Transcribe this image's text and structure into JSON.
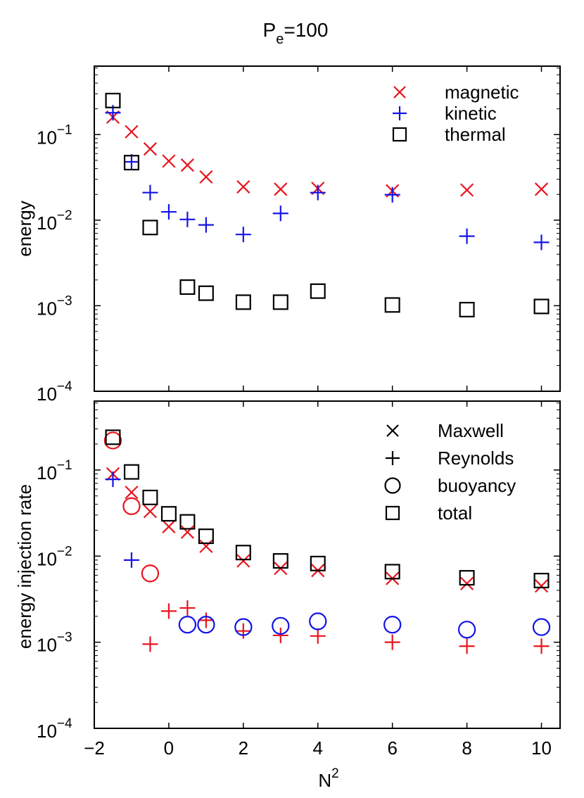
{
  "title": {
    "main": "P",
    "sub": "e",
    "rest": "=100"
  },
  "xlabel": {
    "base": "N",
    "sup": "2"
  },
  "x_ticks": [
    "−2",
    "0",
    "2",
    "4",
    "6",
    "8",
    "10"
  ],
  "colors": {
    "red": "#e8141e",
    "blue": "#1414e6",
    "black": "#000000"
  },
  "chart_data": [
    {
      "type": "scatter",
      "panel": "top",
      "ylabel": "energy",
      "xlim": [
        -2,
        10.5
      ],
      "ylim_log10": [
        -4,
        -0.2
      ],
      "y_ticks": [
        {
          "exp": -1,
          "base": "10",
          "sup": "−1"
        },
        {
          "exp": -2,
          "base": "10",
          "sup": "−2"
        },
        {
          "exp": -3,
          "base": "10",
          "sup": "−3"
        },
        {
          "exp": -4,
          "base": "10",
          "sup": "−4"
        }
      ],
      "legend_position": "top-right",
      "series": [
        {
          "name": "magnetic",
          "marker": "x",
          "color": "red",
          "points": [
            [
              -1.5,
              0.16
            ],
            [
              -1,
              0.108
            ],
            [
              -0.5,
              0.068
            ],
            [
              0,
              0.049
            ],
            [
              0.5,
              0.044
            ],
            [
              1,
              0.032
            ],
            [
              2,
              0.0245
            ],
            [
              3,
              0.023
            ],
            [
              4,
              0.0235
            ],
            [
              6,
              0.022
            ],
            [
              8,
              0.0225
            ],
            [
              10,
              0.023
            ]
          ]
        },
        {
          "name": "kinetic",
          "marker": "+",
          "color": "blue",
          "points": [
            [
              -1.5,
              0.18
            ],
            [
              -1,
              0.048
            ],
            [
              -0.5,
              0.021
            ],
            [
              0,
              0.0125
            ],
            [
              0.5,
              0.0102
            ],
            [
              1,
              0.0088
            ],
            [
              2,
              0.0068
            ],
            [
              3,
              0.012
            ],
            [
              4,
              0.021
            ],
            [
              6,
              0.0198
            ],
            [
              8,
              0.0065
            ],
            [
              10,
              0.0055
            ]
          ]
        },
        {
          "name": "thermal",
          "marker": "square",
          "color": "black",
          "points": [
            [
              -1.5,
              0.25
            ],
            [
              -1,
              0.047
            ],
            [
              -0.5,
              0.0082
            ],
            [
              0.5,
              0.00165
            ],
            [
              1,
              0.0014
            ],
            [
              2,
              0.0011
            ],
            [
              3,
              0.0011
            ],
            [
              4,
              0.00148
            ],
            [
              6,
              0.00102
            ],
            [
              8,
              0.0009
            ],
            [
              10,
              0.00098
            ]
          ]
        }
      ]
    },
    {
      "type": "scatter",
      "panel": "bottom",
      "ylabel": "energy injection rate",
      "xlim": [
        -2,
        10.5
      ],
      "ylim_log10": [
        -4,
        -0.2
      ],
      "y_ticks": [
        {
          "exp": -1,
          "base": "10",
          "sup": "−1"
        },
        {
          "exp": -2,
          "base": "10",
          "sup": "−2"
        },
        {
          "exp": -3,
          "base": "10",
          "sup": "−3"
        },
        {
          "exp": -4,
          "base": "10",
          "sup": "−4"
        }
      ],
      "legend_position": "top-right",
      "legend_color": "black",
      "series": [
        {
          "name": "Maxwell",
          "marker": "x",
          "color": "red",
          "points": [
            [
              -1.5,
              0.09
            ],
            [
              -1,
              0.055
            ],
            [
              -0.5,
              0.033
            ],
            [
              0,
              0.022
            ],
            [
              0.5,
              0.019
            ],
            [
              1,
              0.013
            ],
            [
              2,
              0.0088
            ],
            [
              3,
              0.0072
            ],
            [
              4,
              0.0068
            ],
            [
              6,
              0.0055
            ],
            [
              8,
              0.0048
            ],
            [
              10,
              0.0045
            ]
          ]
        },
        {
          "name": "Reynolds",
          "marker": "+",
          "color": "mixed",
          "points": [
            [
              -1.5,
              0.078,
              "blue"
            ],
            [
              -1,
              0.009,
              "blue"
            ],
            [
              -0.5,
              0.00095,
              "red"
            ],
            [
              0,
              0.0023,
              "red"
            ],
            [
              0.5,
              0.0025,
              "red"
            ],
            [
              1,
              0.0018,
              "red"
            ],
            [
              2,
              0.00135,
              "red"
            ],
            [
              3,
              0.0012,
              "red"
            ],
            [
              4,
              0.00118,
              "red"
            ],
            [
              6,
              0.001,
              "red"
            ],
            [
              8,
              0.0009,
              "red"
            ],
            [
              10,
              0.0009,
              "red"
            ]
          ]
        },
        {
          "name": "buoyancy",
          "marker": "circle",
          "color": "mixed",
          "points": [
            [
              -1.5,
              0.22,
              "red"
            ],
            [
              -1,
              0.038,
              "red"
            ],
            [
              -0.5,
              0.0063,
              "red"
            ],
            [
              0.5,
              0.0016,
              "blue"
            ],
            [
              1,
              0.0016,
              "blue"
            ],
            [
              2,
              0.0015,
              "blue"
            ],
            [
              3,
              0.00155,
              "blue"
            ],
            [
              4,
              0.00175,
              "blue"
            ],
            [
              6,
              0.0016,
              "blue"
            ],
            [
              8,
              0.0014,
              "blue"
            ],
            [
              10,
              0.0015,
              "blue"
            ]
          ]
        },
        {
          "name": "total",
          "marker": "square",
          "color": "black",
          "points": [
            [
              -1.5,
              0.24
            ],
            [
              -1,
              0.095
            ],
            [
              -0.5,
              0.048
            ],
            [
              0,
              0.031
            ],
            [
              0.5,
              0.025
            ],
            [
              1,
              0.017
            ],
            [
              2,
              0.011
            ],
            [
              3,
              0.0088
            ],
            [
              4,
              0.0082
            ],
            [
              6,
              0.0066
            ],
            [
              8,
              0.0056
            ],
            [
              10,
              0.0052
            ]
          ]
        }
      ]
    }
  ]
}
